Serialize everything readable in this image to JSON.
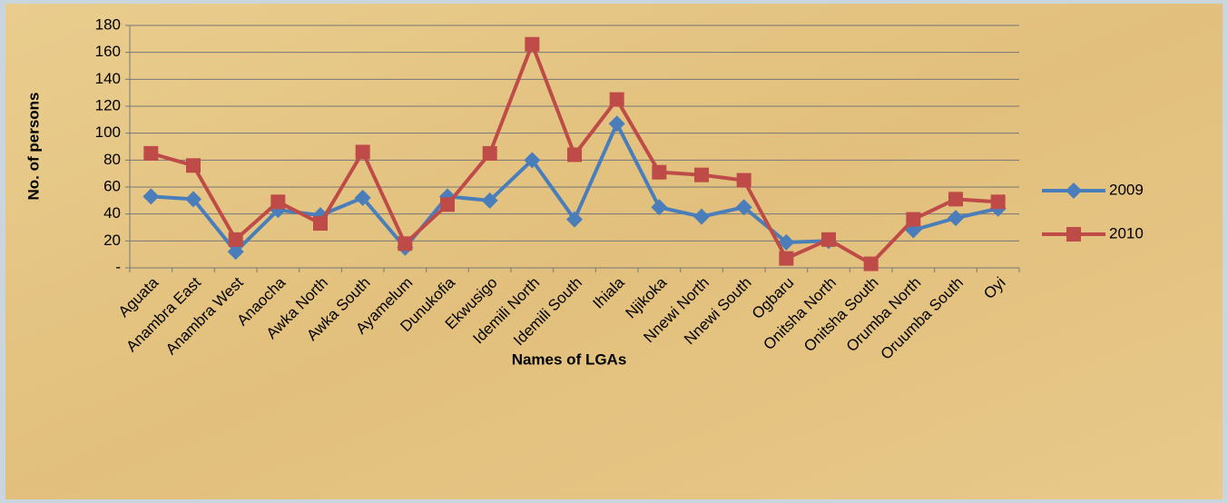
{
  "chart_data": {
    "type": "line",
    "x_label": "Names of LGAs",
    "y_label": "No. of persons",
    "categories": [
      "Aguata",
      "Anambra East",
      "Anambra West",
      "Anaocha",
      "Awka North",
      "Awka South",
      "Ayamelum",
      "Dunukofia",
      "Ekwusigo",
      "Idemili North",
      "Idemili South",
      "Ihiala",
      "Njikoka",
      "Nnewi North",
      "Nnewi South",
      "Ogbaru",
      "Onitsha North",
      "Onitsha South",
      "Orumba North",
      "Oruumba South",
      "Oyi"
    ],
    "series": [
      {
        "name": "2009",
        "color": "#4a7ebb",
        "marker": "diamond",
        "values": [
          53,
          51,
          12,
          43,
          39,
          52,
          15,
          53,
          50,
          80,
          36,
          107,
          45,
          38,
          45,
          19,
          20,
          null,
          28,
          37,
          44
        ]
      },
      {
        "name": "2010",
        "color": "#be4b48",
        "marker": "square",
        "values": [
          85,
          76,
          21,
          49,
          33,
          86,
          18,
          47,
          85,
          166,
          84,
          125,
          71,
          69,
          65,
          7,
          21,
          3,
          36,
          51,
          49
        ]
      }
    ],
    "ylim": [
      0,
      180
    ],
    "yticks": [
      {
        "value": 0,
        "label": "-"
      },
      20,
      40,
      60,
      80,
      100,
      120,
      140,
      160,
      180
    ],
    "grid": true,
    "legend": "right"
  }
}
